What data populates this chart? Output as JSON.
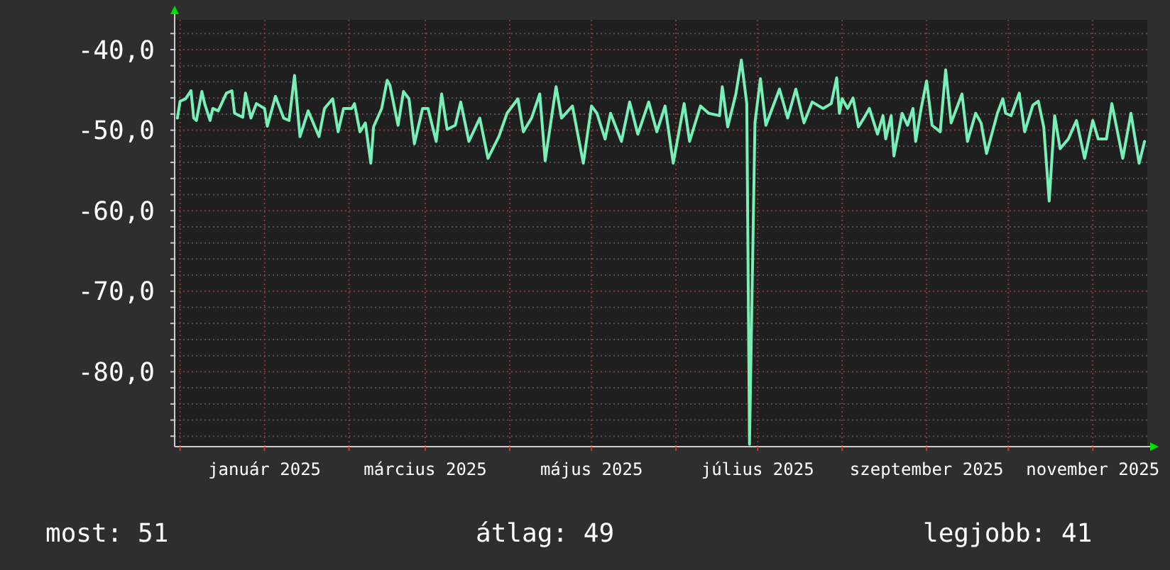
{
  "chart_data": {
    "type": "line",
    "grid": true,
    "marker": "none",
    "line_style": "solid",
    "annotations": [
      "most: 51",
      "átlag: 49",
      "legjobb: 41"
    ],
    "xlim": [
      "2024-11-29",
      "2025-11-21"
    ],
    "xticks": [
      {
        "value": "2024-12-01",
        "label": null
      },
      {
        "value": "2025-01-01",
        "label": "január 2025"
      },
      {
        "value": "2025-02-01",
        "label": null
      },
      {
        "value": "2025-03-01",
        "label": "március 2025"
      },
      {
        "value": "2025-04-01",
        "label": null
      },
      {
        "value": "2025-05-01",
        "label": "május 2025"
      },
      {
        "value": "2025-06-01",
        "label": null
      },
      {
        "value": "2025-07-01",
        "label": "július 2025"
      },
      {
        "value": "2025-08-01",
        "label": null
      },
      {
        "value": "2025-09-01",
        "label": "szeptember 2025"
      },
      {
        "value": "2025-10-01",
        "label": null
      },
      {
        "value": "2025-11-01",
        "label": "november 2025"
      }
    ],
    "ylim": [
      -89.3,
      -36.3
    ],
    "yticks": [
      {
        "value": -88,
        "label": null
      },
      {
        "value": -86,
        "label": null
      },
      {
        "value": -84,
        "label": null
      },
      {
        "value": -82,
        "label": null
      },
      {
        "value": -80,
        "label": "-80,0"
      },
      {
        "value": -78,
        "label": null
      },
      {
        "value": -76,
        "label": null
      },
      {
        "value": -74,
        "label": null
      },
      {
        "value": -72,
        "label": null
      },
      {
        "value": -70,
        "label": "-70,0"
      },
      {
        "value": -68,
        "label": null
      },
      {
        "value": -66,
        "label": null
      },
      {
        "value": -64,
        "label": null
      },
      {
        "value": -62,
        "label": null
      },
      {
        "value": -60,
        "label": "-60,0"
      },
      {
        "value": -58,
        "label": null
      },
      {
        "value": -56,
        "label": null
      },
      {
        "value": -54,
        "label": null
      },
      {
        "value": -52,
        "label": null
      },
      {
        "value": -50,
        "label": "-50,0"
      },
      {
        "value": -48,
        "label": null
      },
      {
        "value": -46,
        "label": null
      },
      {
        "value": -44,
        "label": null
      },
      {
        "value": -42,
        "label": null
      },
      {
        "value": -40,
        "label": "-40,0"
      },
      {
        "value": -38,
        "label": null
      }
    ],
    "series": [
      {
        "color": "#77f0b8",
        "x": [
          "2024-11-30",
          "2024-12-01",
          "2024-12-03",
          "2024-12-05",
          "2024-12-06",
          "2024-12-07",
          "2024-12-09",
          "2024-12-10",
          "2024-12-12",
          "2024-12-13",
          "2024-12-15",
          "2024-12-18",
          "2024-12-20",
          "2024-12-21",
          "2024-12-24",
          "2024-12-25",
          "2024-12-27",
          "2024-12-29",
          "2025-01-01",
          "2025-01-02",
          "2025-01-05",
          "2025-01-08",
          "2025-01-10",
          "2025-01-12",
          "2025-01-14",
          "2025-01-17",
          "2025-01-21",
          "2025-01-23",
          "2025-01-26",
          "2025-01-28",
          "2025-01-30",
          "2025-02-02",
          "2025-02-03",
          "2025-02-05",
          "2025-02-07",
          "2025-02-09",
          "2025-02-10",
          "2025-02-13",
          "2025-02-15",
          "2025-02-16",
          "2025-02-19",
          "2025-02-21",
          "2025-02-23",
          "2025-02-25",
          "2025-02-28",
          "2025-03-02",
          "2025-03-05",
          "2025-03-07",
          "2025-03-09",
          "2025-03-12",
          "2025-03-14",
          "2025-03-17",
          "2025-03-21",
          "2025-03-24",
          "2025-03-28",
          "2025-03-31",
          "2025-04-04",
          "2025-04-06",
          "2025-04-09",
          "2025-04-12",
          "2025-04-14",
          "2025-04-18",
          "2025-04-20",
          "2025-04-24",
          "2025-04-28",
          "2025-05-01",
          "2025-05-03",
          "2025-05-06",
          "2025-05-08",
          "2025-05-12",
          "2025-05-15",
          "2025-05-18",
          "2025-05-22",
          "2025-05-25",
          "2025-05-28",
          "2025-05-31",
          "2025-06-04",
          "2025-06-06",
          "2025-06-10",
          "2025-06-13",
          "2025-06-17",
          "2025-06-18",
          "2025-06-20",
          "2025-06-23",
          "2025-06-25",
          "2025-06-27",
          "2025-06-28",
          "2025-06-30",
          "2025-07-02",
          "2025-07-04",
          "2025-07-09",
          "2025-07-12",
          "2025-07-15",
          "2025-07-18",
          "2025-07-21",
          "2025-07-25",
          "2025-07-28",
          "2025-07-30",
          "2025-07-31",
          "2025-08-01",
          "2025-08-03",
          "2025-08-05",
          "2025-08-07",
          "2025-08-09",
          "2025-08-11",
          "2025-08-14",
          "2025-08-16",
          "2025-08-17",
          "2025-08-19",
          "2025-08-20",
          "2025-08-23",
          "2025-08-25",
          "2025-08-27",
          "2025-08-28",
          "2025-08-30",
          "2025-09-01",
          "2025-09-03",
          "2025-09-06",
          "2025-09-08",
          "2025-09-10",
          "2025-09-14",
          "2025-09-16",
          "2025-09-19",
          "2025-09-21",
          "2025-09-23",
          "2025-09-27",
          "2025-09-29",
          "2025-09-30",
          "2025-10-02",
          "2025-10-05",
          "2025-10-07",
          "2025-10-10",
          "2025-10-12",
          "2025-10-14",
          "2025-10-16",
          "2025-10-18",
          "2025-10-20",
          "2025-10-23",
          "2025-10-26",
          "2025-10-29",
          "2025-11-01",
          "2025-11-03",
          "2025-11-06",
          "2025-11-08",
          "2025-11-12",
          "2025-11-15",
          "2025-11-18",
          "2025-11-20"
        ],
        "values": [
          -48.5,
          -46.4,
          -46.1,
          -45.1,
          -48.5,
          -48.8,
          -45.2,
          -46.7,
          -48.8,
          -47.3,
          -47.6,
          -45.4,
          -45.1,
          -47.9,
          -48.4,
          -45.4,
          -48.5,
          -46.7,
          -47.3,
          -49.5,
          -45.8,
          -48.5,
          -48.8,
          -43.2,
          -50.8,
          -47.6,
          -50.8,
          -47.3,
          -46.1,
          -50.2,
          -47.3,
          -47.3,
          -46.7,
          -50.2,
          -49.1,
          -54.1,
          -49.6,
          -47.3,
          -43.8,
          -44.4,
          -49.4,
          -45.2,
          -46.1,
          -51.7,
          -47.3,
          -47.3,
          -51.4,
          -45.5,
          -49.9,
          -49.4,
          -46.5,
          -51.4,
          -48.5,
          -53.5,
          -50.8,
          -47.9,
          -46.1,
          -50.2,
          -48.5,
          -45.5,
          -53.8,
          -44.6,
          -48.5,
          -47,
          -54.1,
          -47,
          -47.9,
          -51.1,
          -47.9,
          -51.4,
          -46.5,
          -50.5,
          -46.5,
          -50.2,
          -47,
          -54.1,
          -46.7,
          -51.4,
          -47,
          -47.9,
          -48.2,
          -44.6,
          -49.6,
          -45.5,
          -41.3,
          -46.7,
          -89,
          -49.1,
          -43.6,
          -49.4,
          -44.9,
          -48.5,
          -44.9,
          -49.1,
          -46.5,
          -47.3,
          -46.7,
          -43.5,
          -47.9,
          -46.1,
          -47.3,
          -46,
          -49.6,
          -48.5,
          -47.3,
          -50.5,
          -48.2,
          -51.1,
          -48.2,
          -53.2,
          -47.9,
          -49.4,
          -47.3,
          -51.4,
          -47.3,
          -43.9,
          -49.4,
          -50.2,
          -42.5,
          -49.1,
          -45.5,
          -51.4,
          -47.9,
          -49.1,
          -52.9,
          -47.9,
          -46.1,
          -47.9,
          -48.2,
          -45.4,
          -50.2,
          -46.9,
          -46.4,
          -49.6,
          -58.8,
          -48.2,
          -52.3,
          -51.1,
          -48.8,
          -53.5,
          -48.8,
          -51.1,
          -51.1,
          -46.7,
          -53.5,
          -47.9,
          -54.1,
          -51.4
        ]
      }
    ]
  }
}
